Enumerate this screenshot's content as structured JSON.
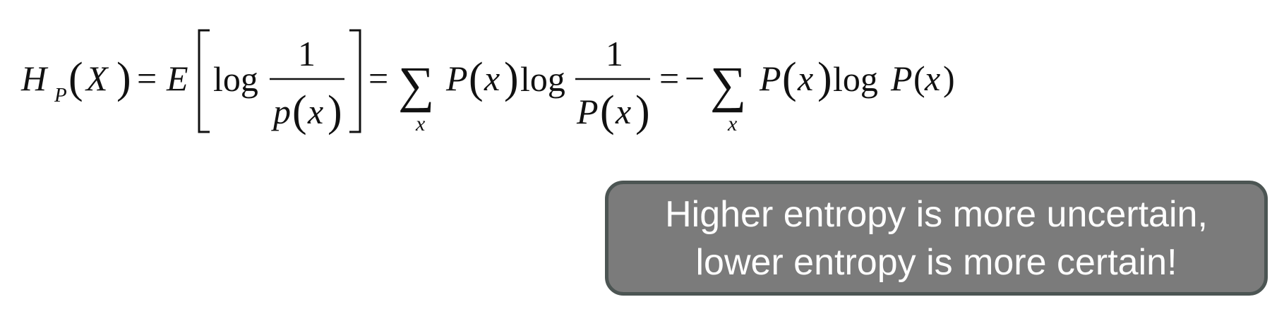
{
  "equation": {
    "lhs": {
      "h": "H",
      "sub": "P",
      "var": "X"
    },
    "equals": "=",
    "expectation": "E",
    "log": "log",
    "one": "1",
    "p_lower": "p",
    "p_upper": "P",
    "x": "x",
    "minus": "−",
    "sum": "∑",
    "sum_index": "x",
    "open_paren": "(",
    "close_paren": ")"
  },
  "callout": {
    "line1": "Higher entropy is more uncertain,",
    "line2": "lower entropy is more certain!"
  },
  "colors": {
    "text": "#111111",
    "callout_fill": "#7b7b7b",
    "callout_border": "#4c5553",
    "callout_text": "#ffffff"
  }
}
